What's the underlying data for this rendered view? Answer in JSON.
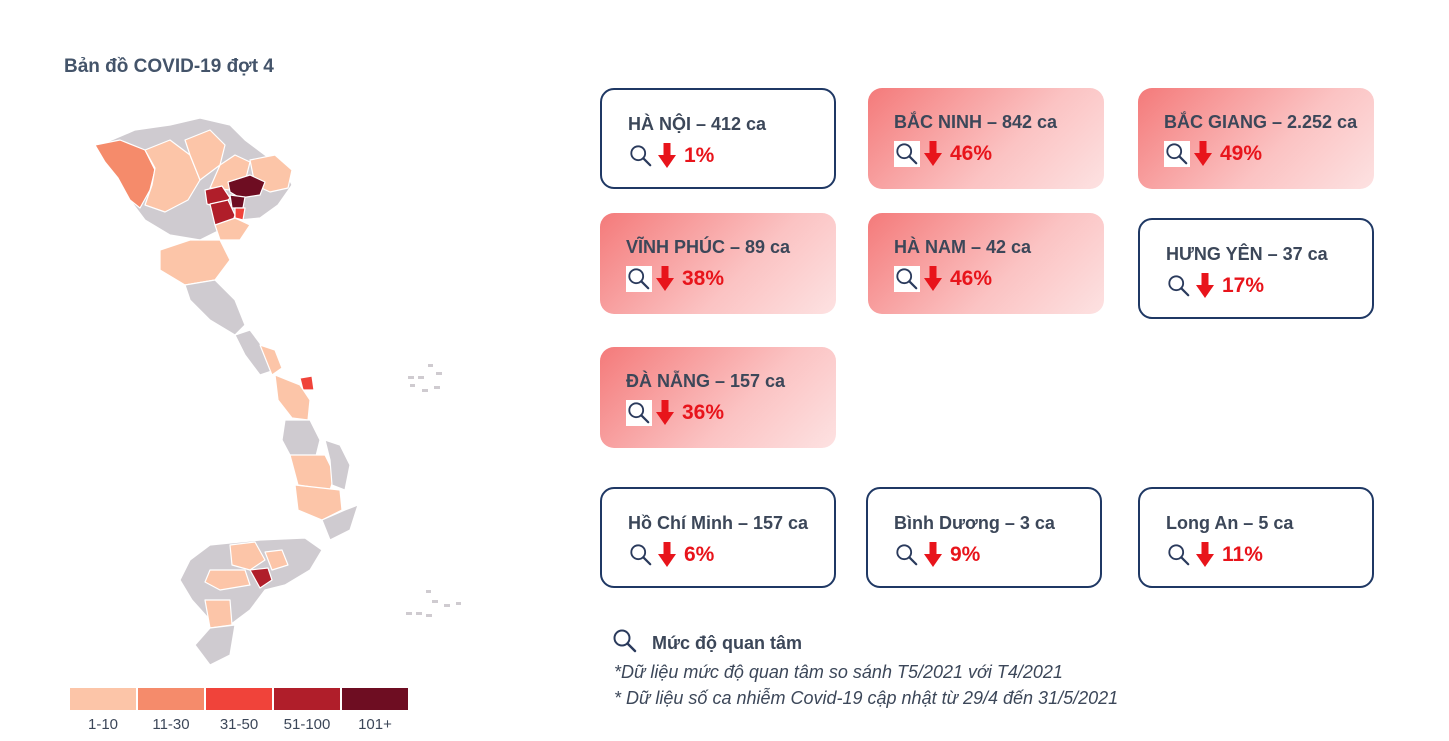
{
  "map": {
    "title": "Bản đồ COVID-19 đợt 4",
    "legend": [
      {
        "label": "1-10",
        "color": "#fcc5a8"
      },
      {
        "label": "11-30",
        "color": "#f58b6b"
      },
      {
        "label": "31-50",
        "color": "#f0433a"
      },
      {
        "label": "51-100",
        "color": "#b01e2a"
      },
      {
        "label": "101+",
        "color": "#6e0d22"
      }
    ],
    "no_data_color": "#cfcbd0"
  },
  "cards": [
    {
      "title": "HÀ NỘI – 412 ca",
      "change": "1%",
      "style": "outline"
    },
    {
      "title": "BẮC NINH – 842 ca",
      "change": "46%",
      "style": "hot"
    },
    {
      "title": "BẮC GIANG – 2.252 ca",
      "change": "49%",
      "style": "hot"
    },
    {
      "title": "VĨNH PHÚC – 89 ca",
      "change": "38%",
      "style": "hot"
    },
    {
      "title": "HÀ NAM – 42 ca",
      "change": "46%",
      "style": "hot"
    },
    {
      "title": "HƯNG YÊN – 37 ca",
      "change": "17%",
      "style": "outline"
    },
    {
      "title": "ĐÀ NẴNG – 157 ca",
      "change": "36%",
      "style": "hot"
    },
    {
      "title": "Hồ Chí Minh – 157 ca",
      "change": "6%",
      "style": "outline"
    },
    {
      "title": "Bình Dương – 3 ca",
      "change": "9%",
      "style": "outline"
    },
    {
      "title": "Long An – 5 ca",
      "change": "11%",
      "style": "outline"
    }
  ],
  "note": {
    "icon": "magnifier-icon",
    "label": "Mức độ quan tâm",
    "footnotes": [
      "*Dữ liệu mức độ quan tâm so sánh T5/2021 với T4/2021",
      "* Dữ liệu số ca nhiễm Covid-19 cập nhật từ 29/4 đến 31/5/2021"
    ]
  },
  "colors": {
    "accent_red": "#e8141b",
    "outline_navy": "#1f3864",
    "text": "#3c4759"
  }
}
